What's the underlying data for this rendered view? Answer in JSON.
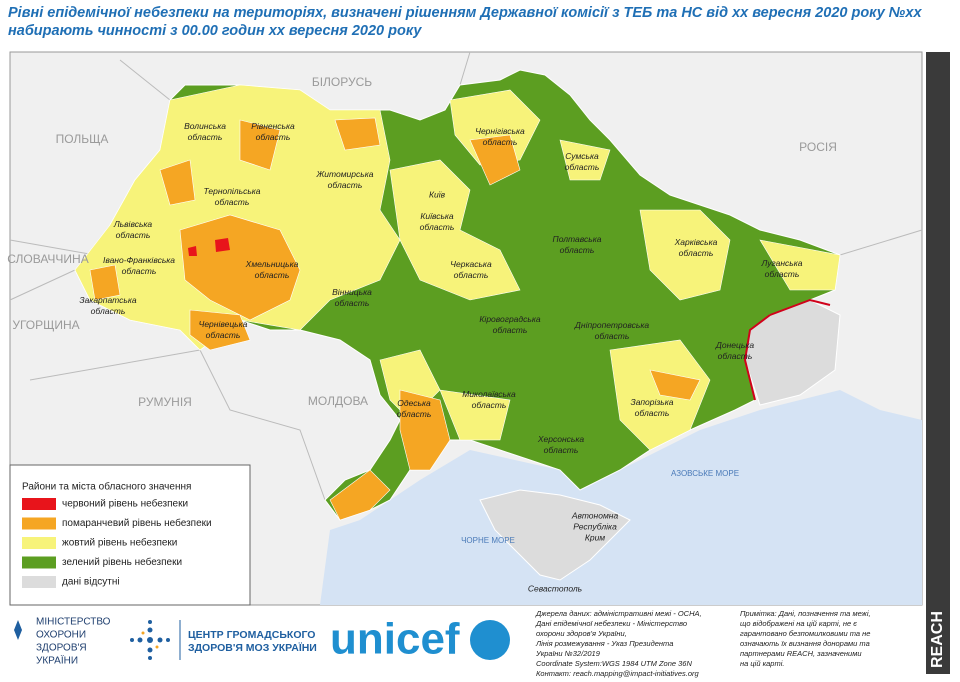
{
  "header": {
    "title_lines": [
      "Рівні епідемічної небезпеки на територіях, визначені рішенням Державної комісії з ТЕБ та НС від хх вересня 2020 року №хх",
      "набирають чинності з 00.00 годин хх вересня 2020 року"
    ]
  },
  "map": {
    "countries": [
      "ПОЛЬЩА",
      "БІЛОРУСЬ",
      "РОСІЯ",
      "СЛОВАЧЧИНА",
      "УГОРЩИНА",
      "РУМУНІЯ",
      "МОЛДОВА"
    ],
    "seas": [
      "АЗОВСЬКЕ МОРЕ",
      "ЧОРНЕ МОРЕ"
    ],
    "regions": [
      {
        "lines": [
          "Волинська",
          "область"
        ]
      },
      {
        "lines": [
          "Рівненська",
          "область"
        ]
      },
      {
        "lines": [
          "Житомирська",
          "область"
        ]
      },
      {
        "lines": [
          "Чернігівська",
          "область"
        ]
      },
      {
        "lines": [
          "Сумська",
          "область"
        ]
      },
      {
        "lines": [
          "Київ"
        ]
      },
      {
        "lines": [
          "Київська",
          "область"
        ]
      },
      {
        "lines": [
          "Львівська",
          "область"
        ]
      },
      {
        "lines": [
          "Тернопільська",
          "область"
        ]
      },
      {
        "lines": [
          "Хмельницька",
          "область"
        ]
      },
      {
        "lines": [
          "Івано-Франківська",
          "область"
        ]
      },
      {
        "lines": [
          "Закарпатська",
          "область"
        ]
      },
      {
        "lines": [
          "Чернівецька",
          "область"
        ]
      },
      {
        "lines": [
          "Вінницька",
          "область"
        ]
      },
      {
        "lines": [
          "Черкаська",
          "область"
        ]
      },
      {
        "lines": [
          "Полтавська",
          "область"
        ]
      },
      {
        "lines": [
          "Харківська",
          "область"
        ]
      },
      {
        "lines": [
          "Луганська",
          "область"
        ]
      },
      {
        "lines": [
          "Кіровоградська",
          "область"
        ]
      },
      {
        "lines": [
          "Дніпропетровська",
          "область"
        ]
      },
      {
        "lines": [
          "Донецька",
          "область"
        ]
      },
      {
        "lines": [
          "Одеська",
          "область"
        ]
      },
      {
        "lines": [
          "Миколаївська",
          "область"
        ]
      },
      {
        "lines": [
          "Запорізька",
          "область"
        ]
      },
      {
        "lines": [
          "Херсонська",
          "область"
        ]
      },
      {
        "lines": [
          "Автономна",
          "Республіка",
          "Крим"
        ]
      },
      {
        "lines": [
          "Севастополь"
        ]
      }
    ]
  },
  "legend": {
    "title": "Райони та міста обласного значення",
    "items": [
      {
        "label": "червоний рівень небезпеки",
        "color": "#e8141b"
      },
      {
        "label": "помаранчевий рівень небезпеки",
        "color": "#f5a623"
      },
      {
        "label": "жовтий рівень небезпеки",
        "color": "#f7f37a"
      },
      {
        "label": "зелений рівень небезпеки",
        "color": "#5c9e21"
      },
      {
        "label": "дані відсутні",
        "color": "#dcdcdc"
      }
    ]
  },
  "footer": {
    "ministry_lines": [
      "МІНІСТЕРСТВО",
      "ОХОРОНИ",
      "ЗДОРОВ'Я",
      "УКРАЇНИ"
    ],
    "center_lines": [
      "ЦЕНТР ГРОМАДСЬКОГО",
      "ЗДОРОВ'Я МОЗ УКРАЇНИ"
    ],
    "unicef": "unicef",
    "sources_lines": [
      "Джерела даних: адміністративні межі - OCHA,",
      "Дані епідемічної небезпеки - Міністерство",
      "охорони здоров'я України,",
      "Лінія розмежування - Указ Президента",
      "України №32/2019",
      "Coordinate System:WGS 1984 UTM Zone 36N",
      "Контакт: reach.mapping@impact-initiatives.org"
    ],
    "note_lines": [
      "Примітка: Дані, позначення та межі,",
      "що відображені на цій карті, не є",
      "гарантовано безпомилковими та не",
      "означають їх визнання донорами та",
      "партнерами REACH, зазначеними",
      "на цій карті."
    ],
    "reach": "REACH"
  }
}
